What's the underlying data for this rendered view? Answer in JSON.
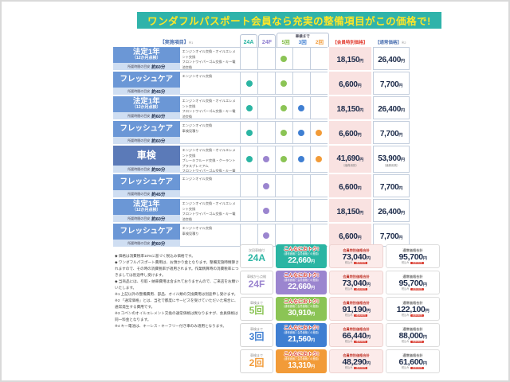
{
  "title": "ワンダフルパスポート会員なら充実の整備項目がこの価格で!",
  "yen": "円",
  "table": {
    "header": {
      "items_label": "【実施項目】",
      "items_note": "※1",
      "col_24a": "24A",
      "col_24f": "24F",
      "shaken_group": "車検まで",
      "col_5": "5回",
      "col_3": "3回",
      "col_2": "2回",
      "member_label": "【会員特別価格】",
      "normal_label": "【通常価格】",
      "normal_note": "※2"
    },
    "time_prefix": "所要時間の目安",
    "dot_colors": [
      "#2bb5a3",
      "#9b85cf",
      "#8bc455",
      "#3f7fd2",
      "#f29b38"
    ],
    "dot_meaning": "included-in-plan",
    "rows": [
      {
        "label": "法定1年",
        "sub": "（12か月点検）",
        "time": "約60分",
        "desc": "エンジンオイル交換・オイルエレメント交換\nフロントワイパーゴム交換・キー電池交換\n専用コンピューター診断",
        "dots": [
          0,
          0,
          1,
          0,
          0
        ],
        "member": "18,150",
        "member_note": "",
        "normal": "26,400",
        "normal_note": "",
        "tall": false
      },
      {
        "label": "フレッシュケア",
        "sub": "",
        "time": "約45分",
        "desc": "エンジンオイル交換",
        "dots": [
          1,
          0,
          1,
          0,
          0
        ],
        "member": "6,600",
        "member_note": "",
        "normal": "7,700",
        "normal_note": "",
        "tall": false
      },
      {
        "label": "法定1年",
        "sub": "（12か月点検）",
        "time": "約60分",
        "desc": "エンジンオイル交換・オイルエレメント交換\nフロントワイパーゴム交換・キー電池交換\n専用コンピューター診断",
        "dots": [
          1,
          0,
          1,
          1,
          0
        ],
        "member": "18,150",
        "member_note": "",
        "normal": "26,400",
        "normal_note": "",
        "tall": false
      },
      {
        "label": "フレッシュケア",
        "sub": "",
        "time": "約60分",
        "desc": "エンジンオイル交換\n車検見積り",
        "dots": [
          1,
          0,
          1,
          1,
          1
        ],
        "member": "6,600",
        "member_note": "",
        "normal": "7,700",
        "normal_note": "",
        "tall": false
      },
      {
        "label": "車検",
        "sub": "",
        "time": "約90分",
        "desc": "エンジンオイル交換・オイルエレメント交換\nブレーキフルード交換・クーラントプラスプレミアム\nフロントワイパーゴム交換・キー電池交換\nブレーキメンテナンスキット・専用コンピューター診断",
        "dots": [
          1,
          1,
          1,
          1,
          1
        ],
        "member": "41,690",
        "member_note": "（諸費用別）",
        "normal": "53,900",
        "normal_note": "（諸費用別）",
        "tall": true
      },
      {
        "label": "フレッシュケア",
        "sub": "",
        "time": "約45分",
        "desc": "エンジンオイル交換",
        "dots": [
          0,
          1,
          0,
          0,
          0
        ],
        "member": "6,600",
        "member_note": "",
        "normal": "7,700",
        "normal_note": "",
        "tall": false
      },
      {
        "label": "法定1年",
        "sub": "（12か月点検）",
        "time": "約60分",
        "desc": "エンジンオイル交換・オイルエレメント交換\nフロントワイパーゴム交換・キー電池交換\n専用コンピューター診断",
        "dots": [
          0,
          1,
          0,
          0,
          0
        ],
        "member": "18,150",
        "member_note": "",
        "normal": "26,400",
        "normal_note": "",
        "tall": false
      },
      {
        "label": "フレッシュケア",
        "sub": "",
        "time": "約60分",
        "desc": "エンジンオイル交換\n車検見積り",
        "dots": [
          0,
          1,
          0,
          0,
          0
        ],
        "member": "6,600",
        "member_note": "",
        "normal": "7,700",
        "normal_note": "",
        "tall": false
      }
    ]
  },
  "notes": [
    "◆ 価格は消費税率10%に基づく税込み価格です。",
    "◆ ワンダフルパスポート費用は、お預かり金となります。整備実施時精算されますので、その時の消費税率が適用されます。作業精算時の消費税率につきましては別途申し受けます。",
    "◆ 当商品には、引取・納車費用は含まれておりませんので、ご来店をお願いいたします。",
    "※1 上記以外の整備費用、部品、オイル類の交換費用は別途申し受けます。",
    "※2 「通常価格」とは、当社で都度にサービスを受けていただいた場合に、通常発生する費用です。",
    "※3 コペンのオイルエレメント交換の通常価格は異なりますが、会員価格は同一料金となります。",
    "※4 キー電池は、キーレス・キーフリー付き車のみ適用となります。"
  ],
  "summary": {
    "otoku_title": "こんなにおトク!",
    "otoku_sub": "（通常価格と会員価格との差額）",
    "member_label": "会員特別価格合計",
    "normal_label": "通常価格合計",
    "tax_label": "税込み",
    "fee_badge": "諸費用別",
    "rows": [
      {
        "plan_small": "次回車検付",
        "plan": "24A",
        "color": "#2bb5a3",
        "otoku": "22,660",
        "member": "73,040",
        "normal": "95,700"
      },
      {
        "plan_small": "車検から点検",
        "plan": "24F",
        "color": "#9b85cf",
        "otoku": "22,660",
        "member": "73,040",
        "normal": "95,700"
      },
      {
        "plan_small": "車検まで",
        "plan": "5回",
        "color": "#8bc455",
        "otoku": "30,910",
        "member": "91,190",
        "normal": "122,100"
      },
      {
        "plan_small": "車検まで",
        "plan": "3回",
        "color": "#3f7fd2",
        "otoku": "21,560",
        "member": "66,440",
        "normal": "88,000"
      },
      {
        "plan_small": "車検まで",
        "plan": "2回",
        "color": "#f29b38",
        "otoku": "13,310",
        "member": "48,290",
        "normal": "61,600"
      }
    ]
  }
}
